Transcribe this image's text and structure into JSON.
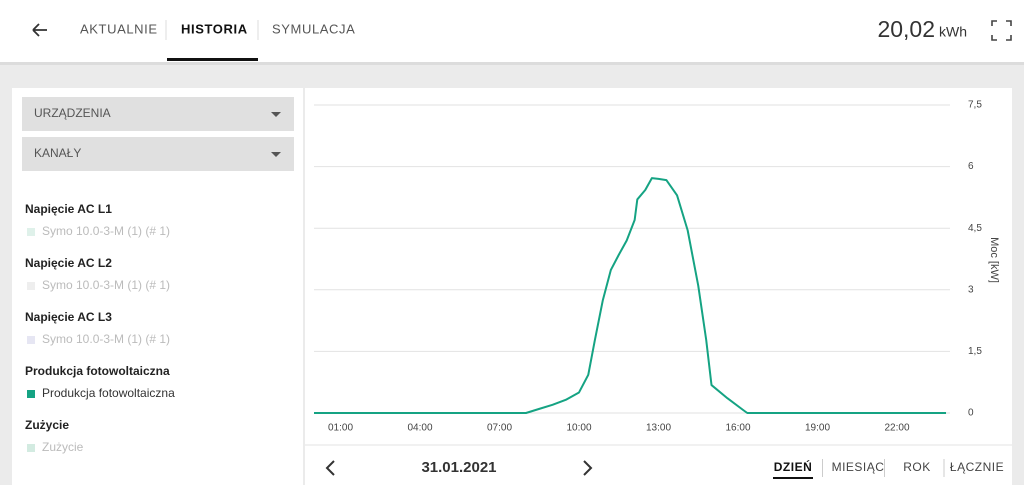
{
  "header": {
    "tabs": [
      "AKTUALNIE",
      "HISTORIA",
      "SYMULACJA"
    ],
    "active_tab": 1,
    "energy": "20,02",
    "energy_unit": "kWh"
  },
  "sidebar": {
    "dropdowns": [
      "URZĄDZENIA",
      "KANAŁY"
    ],
    "groups": [
      {
        "title": "Napięcie AC L1",
        "items": [
          {
            "name": "Symo 10.0-3-M (1) (# 1)",
            "color": "#dff1ea",
            "active": false
          }
        ]
      },
      {
        "title": "Napięcie AC L2",
        "items": [
          {
            "name": "Symo 10.0-3-M (1) (# 1)",
            "color": "#eeeeee",
            "active": false
          }
        ]
      },
      {
        "title": "Napięcie AC L3",
        "items": [
          {
            "name": "Symo 10.0-3-M (1) (# 1)",
            "color": "#e6e6f3",
            "active": false
          }
        ]
      },
      {
        "title": "Produkcja fotowoltaiczna",
        "series": 0
      },
      {
        "title": "Zużycie",
        "items": [
          {
            "name": "Zużycie",
            "color": "#d3ebe1",
            "active": false
          }
        ]
      }
    ]
  },
  "chart_data": {
    "type": "line",
    "y_label": "Moc [kW]",
    "x": [
      0,
      8.0,
      8.5,
      9.0,
      9.5,
      10.0,
      10.35,
      10.6,
      10.9,
      11.2,
      11.5,
      11.8,
      12.1,
      12.2,
      12.5,
      12.75,
      13.0,
      13.3,
      13.7,
      14.1,
      14.5,
      14.8,
      15.0,
      15.6,
      16.2,
      16.35,
      23.85
    ],
    "series": [
      {
        "name": "Produkcja fotowoltaiczna",
        "color": "#15a383",
        "values": [
          0,
          0,
          0.1,
          0.2,
          0.32,
          0.5,
          0.93,
          1.78,
          2.75,
          3.48,
          3.85,
          4.2,
          4.7,
          5.2,
          5.43,
          5.72,
          5.7,
          5.67,
          5.3,
          4.45,
          3.1,
          1.78,
          0.68,
          0.36,
          0.07,
          0,
          0
        ]
      }
    ],
    "xlim": [
      0,
      24
    ],
    "xticks": [
      {
        "value": 1,
        "label": "01:00"
      },
      {
        "value": 4,
        "label": "04:00"
      },
      {
        "value": 7,
        "label": "07:00"
      },
      {
        "value": 10,
        "label": "10:00"
      },
      {
        "value": 13,
        "label": "13:00"
      },
      {
        "value": 16,
        "label": "16:00"
      },
      {
        "value": 19,
        "label": "19:00"
      },
      {
        "value": 22,
        "label": "22:00"
      }
    ],
    "ylim": [
      0,
      7.5
    ],
    "yticks": [
      0,
      {
        "value": 1.5,
        "label": "1,5"
      },
      3,
      {
        "value": 4.5,
        "label": "4,5"
      },
      6,
      {
        "value": 7.5,
        "label": "7,5"
      }
    ],
    "grid": true,
    "y_axis_side": "right"
  },
  "footer": {
    "date": "31.01.2021",
    "periods": [
      "DZIEŃ",
      "MIESIĄC",
      "ROK",
      "ŁĄCZNIE"
    ],
    "active_period": 0
  }
}
